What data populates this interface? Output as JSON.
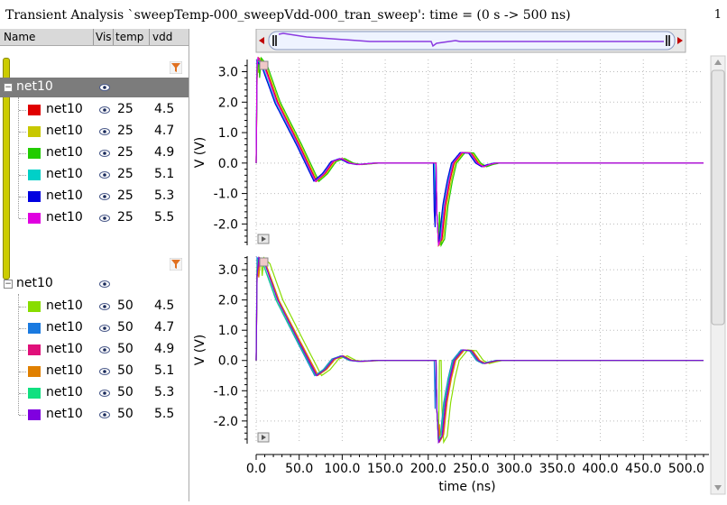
{
  "window": {
    "title": "Transient Analysis `sweepTemp-000_sweepVdd-000_tran_sweep': time = (0 s -> 500 ns)",
    "corner_number": "1"
  },
  "columns": {
    "name": "Name",
    "vis": "Vis",
    "temp": "temp",
    "vdd": "vdd"
  },
  "groups": [
    {
      "name": "net10",
      "selected": true,
      "rows": [
        {
          "name": "net10",
          "temp": "25",
          "vdd": "4.5",
          "color": "#e00000"
        },
        {
          "name": "net10",
          "temp": "25",
          "vdd": "4.7",
          "color": "#c8c800"
        },
        {
          "name": "net10",
          "temp": "25",
          "vdd": "4.9",
          "color": "#22cc00"
        },
        {
          "name": "net10",
          "temp": "25",
          "vdd": "5.1",
          "color": "#00d0c8"
        },
        {
          "name": "net10",
          "temp": "25",
          "vdd": "5.3",
          "color": "#0000e0"
        },
        {
          "name": "net10",
          "temp": "25",
          "vdd": "5.5",
          "color": "#e000e0"
        }
      ]
    },
    {
      "name": "net10",
      "selected": false,
      "rows": [
        {
          "name": "net10",
          "temp": "50",
          "vdd": "4.5",
          "color": "#88dd00"
        },
        {
          "name": "net10",
          "temp": "50",
          "vdd": "4.7",
          "color": "#1a7ae0"
        },
        {
          "name": "net10",
          "temp": "50",
          "vdd": "4.9",
          "color": "#e0107a"
        },
        {
          "name": "net10",
          "temp": "50",
          "vdd": "5.1",
          "color": "#e08000"
        },
        {
          "name": "net10",
          "temp": "50",
          "vdd": "5.3",
          "color": "#10e080"
        },
        {
          "name": "net10",
          "temp": "50",
          "vdd": "5.5",
          "color": "#8000e0"
        }
      ]
    }
  ],
  "chart_data": [
    {
      "type": "line",
      "xlabel": "",
      "ylabel": "V (V)",
      "xlim": [
        0,
        520
      ],
      "ylim": [
        -2.7,
        3.4
      ],
      "yticks": [
        "3.0",
        "2.0",
        "1.0",
        "0.0",
        "-1.0",
        "-2.0"
      ],
      "ytick_values": [
        3.0,
        2.0,
        1.0,
        0.0,
        -1.0,
        -2.0
      ],
      "grid": true,
      "waveform": {
        "x": [
          0,
          1,
          3,
          10,
          25,
          50,
          70,
          80,
          90,
          100,
          110,
          120,
          140,
          160,
          180,
          209,
          210,
          212,
          216,
          220,
          225,
          230,
          240,
          250,
          258,
          265,
          272,
          280,
          300,
          350,
          400,
          450,
          520
        ],
        "y": [
          0.0,
          2.8,
          3.45,
          3.2,
          2.0,
          0.6,
          -0.6,
          -0.35,
          0.05,
          0.15,
          0.0,
          -0.05,
          0.0,
          0.0,
          0.0,
          0.0,
          -1.6,
          -2.7,
          -2.5,
          -1.4,
          -0.6,
          0.0,
          0.35,
          0.33,
          0.0,
          -0.12,
          -0.05,
          0.0,
          0.0,
          0.0,
          0.0,
          0.0,
          0.0
        ]
      },
      "series": [
        {
          "name": "net10 temp=25 vdd=4.5",
          "color": "#e00000",
          "shift": 0.0,
          "amp": 1.0
        },
        {
          "name": "net10 temp=25 vdd=4.7",
          "color": "#c8c800",
          "shift": 1.5,
          "amp": 1.0
        },
        {
          "name": "net10 temp=25 vdd=4.9",
          "color": "#22cc00",
          "shift": 3.0,
          "amp": 1.0
        },
        {
          "name": "net10 temp=25 vdd=5.1",
          "color": "#00d0c8",
          "shift": -2.0,
          "amp": 0.98
        },
        {
          "name": "net10 temp=25 vdd=5.3",
          "color": "#0000e0",
          "shift": -3.0,
          "amp": 0.98
        },
        {
          "name": "net10 temp=25 vdd=5.5",
          "color": "#e000e0",
          "shift": -1.0,
          "amp": 1.0
        }
      ]
    },
    {
      "type": "line",
      "xlabel": "time (ns)",
      "ylabel": "V (V)",
      "xlim": [
        0,
        520
      ],
      "ylim": [
        -2.75,
        3.45
      ],
      "yticks": [
        "3.0",
        "2.0",
        "1.0",
        "0.0",
        "-1.0",
        "-2.0"
      ],
      "ytick_values": [
        3.0,
        2.0,
        1.0,
        0.0,
        -1.0,
        -2.0
      ],
      "xticks": [
        "0.0",
        "50.0",
        "100.0",
        "150.0",
        "200.0",
        "250.0",
        "300.0",
        "350.0",
        "400.0",
        "450.0",
        "500.0"
      ],
      "xtick_values": [
        0,
        50,
        100,
        150,
        200,
        250,
        300,
        350,
        400,
        450,
        500
      ],
      "grid": true,
      "waveform": {
        "x": [
          0,
          1,
          3,
          10,
          25,
          50,
          70,
          80,
          90,
          100,
          110,
          120,
          140,
          160,
          180,
          209,
          210,
          212,
          216,
          220,
          225,
          230,
          240,
          250,
          258,
          265,
          272,
          280,
          300,
          350,
          400,
          450,
          520
        ],
        "y": [
          0.0,
          2.8,
          3.4,
          3.2,
          2.0,
          0.6,
          -0.5,
          -0.3,
          0.05,
          0.15,
          0.0,
          -0.03,
          0.0,
          0.0,
          0.0,
          0.0,
          -1.6,
          -2.7,
          -2.5,
          -1.4,
          -0.6,
          0.0,
          0.35,
          0.32,
          0.0,
          -0.1,
          -0.05,
          0.0,
          0.0,
          0.0,
          0.0,
          0.0,
          0.0
        ]
      },
      "series": [
        {
          "name": "net10 temp=50 vdd=4.5",
          "color": "#88dd00",
          "shift": 6.0,
          "amp": 1.0
        },
        {
          "name": "net10 temp=50 vdd=4.7",
          "color": "#1a7ae0",
          "shift": -2.0,
          "amp": 1.0
        },
        {
          "name": "net10 temp=50 vdd=4.9",
          "color": "#e0107a",
          "shift": 1.0,
          "amp": 1.0
        },
        {
          "name": "net10 temp=50 vdd=5.1",
          "color": "#e08000",
          "shift": 2.0,
          "amp": 0.98
        },
        {
          "name": "net10 temp=50 vdd=5.3",
          "color": "#10e080",
          "shift": -1.0,
          "amp": 0.98
        },
        {
          "name": "net10 temp=50 vdd=5.5",
          "color": "#8000e0",
          "shift": 0.0,
          "amp": 1.0
        }
      ]
    }
  ]
}
